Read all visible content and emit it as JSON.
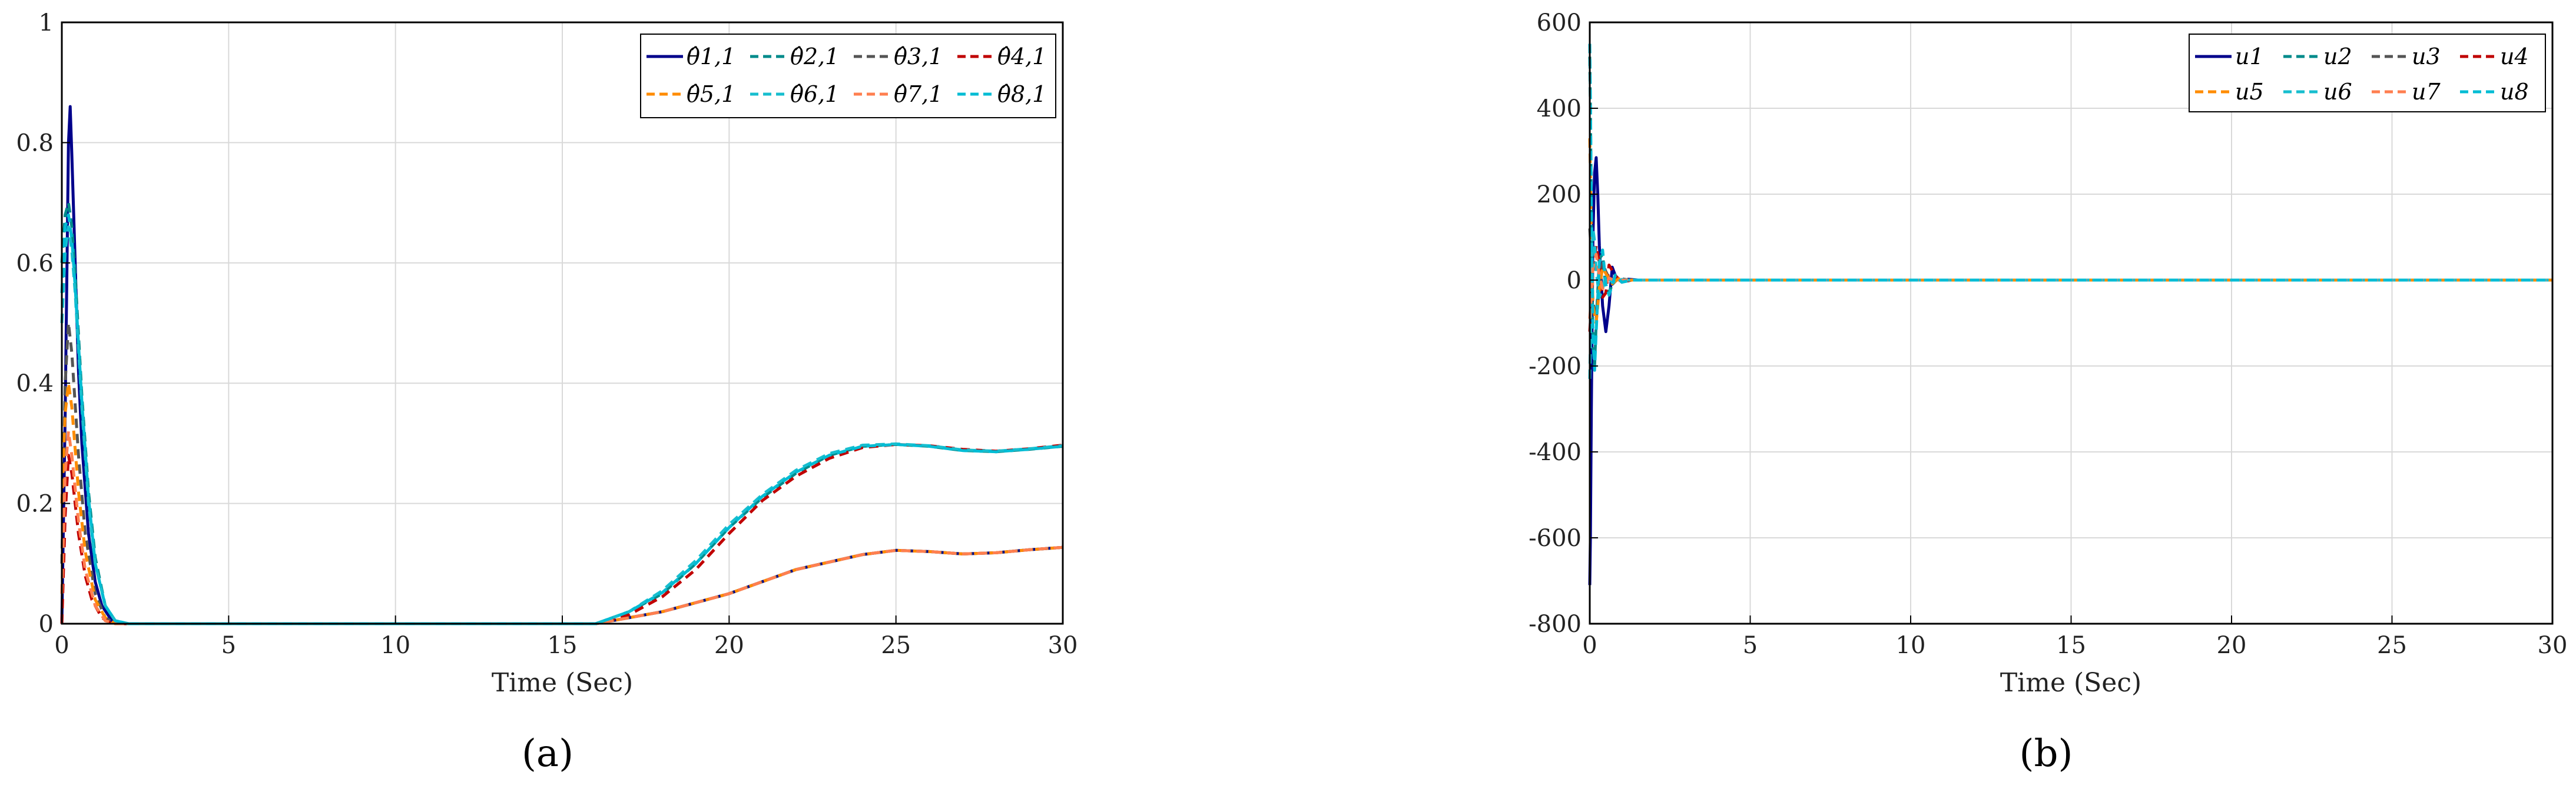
{
  "chart_data": [
    {
      "type": "line",
      "caption": "(a)",
      "xlabel": "Time (Sec)",
      "ylabel": "",
      "xlim": [
        0,
        30
      ],
      "ylim": [
        0,
        1
      ],
      "xticks": [
        "0",
        "5",
        "10",
        "15",
        "20",
        "25",
        "30"
      ],
      "yticks": [
        "0",
        "0.2",
        "0.4",
        "0.6",
        "0.8",
        "1"
      ],
      "grid": true,
      "legend_position": "top-right",
      "series": [
        {
          "name": "θ̂1,1",
          "color": "#00008b",
          "dash": "solid",
          "x": [
            0,
            0.1,
            0.2,
            0.25,
            0.3,
            0.4,
            0.5,
            0.6,
            0.8,
            1.0,
            1.2,
            1.5,
            1.8,
            2.2,
            16,
            18,
            20,
            22,
            24,
            25,
            26,
            27,
            28,
            29,
            30
          ],
          "y": [
            0,
            0.35,
            0.8,
            0.86,
            0.78,
            0.6,
            0.42,
            0.3,
            0.15,
            0.07,
            0.03,
            0.005,
            0,
            0,
            0,
            0.02,
            0.05,
            0.09,
            0.115,
            0.122,
            0.12,
            0.116,
            0.118,
            0.123,
            0.127
          ]
        },
        {
          "name": "θ̂2,1",
          "color": "#008b8b",
          "dash": "dashed",
          "x": [
            0,
            0.1,
            0.2,
            0.3,
            0.4,
            0.6,
            0.8,
            1.0,
            1.3,
            1.6,
            2.0,
            16,
            17,
            18,
            19,
            20,
            21,
            22,
            23,
            24,
            25,
            26,
            27,
            28,
            29,
            30
          ],
          "y": [
            0.6,
            0.68,
            0.7,
            0.66,
            0.58,
            0.38,
            0.22,
            0.11,
            0.03,
            0.005,
            0,
            0,
            0.02,
            0.05,
            0.1,
            0.16,
            0.21,
            0.25,
            0.28,
            0.295,
            0.298,
            0.295,
            0.288,
            0.286,
            0.29,
            0.295
          ]
        },
        {
          "name": "θ̂3,1",
          "color": "#555555",
          "dash": "dashed",
          "x": [
            0,
            0.1,
            0.2,
            0.3,
            0.5,
            0.7,
            1.0,
            1.3,
            1.6,
            2.0,
            16,
            18,
            20,
            22,
            24,
            25,
            26,
            27,
            28,
            29,
            30
          ],
          "y": [
            0.1,
            0.4,
            0.5,
            0.45,
            0.28,
            0.15,
            0.05,
            0.01,
            0,
            0,
            0,
            0.02,
            0.05,
            0.09,
            0.115,
            0.122,
            0.12,
            0.116,
            0.118,
            0.123,
            0.127
          ]
        },
        {
          "name": "θ̂4,1",
          "color": "#c00000",
          "dash": "dashed",
          "x": [
            0,
            0.1,
            0.2,
            0.3,
            0.5,
            0.7,
            0.9,
            1.2,
            1.5,
            2.0,
            16,
            17,
            18,
            19,
            20,
            21,
            22,
            23,
            24,
            25,
            26,
            27,
            28,
            29,
            30
          ],
          "y": [
            0,
            0.18,
            0.28,
            0.25,
            0.15,
            0.08,
            0.04,
            0.01,
            0,
            0,
            0,
            0.015,
            0.045,
            0.09,
            0.15,
            0.205,
            0.245,
            0.275,
            0.293,
            0.298,
            0.296,
            0.29,
            0.287,
            0.291,
            0.297
          ]
        },
        {
          "name": "θ̂5,1",
          "color": "#ff8c00",
          "dash": "dashed",
          "x": [
            0,
            0.1,
            0.2,
            0.3,
            0.5,
            0.7,
            1.0,
            1.3,
            1.6,
            2.0,
            16,
            18,
            20,
            22,
            24,
            25,
            26,
            27,
            28,
            29,
            30
          ],
          "y": [
            0.2,
            0.35,
            0.4,
            0.36,
            0.22,
            0.12,
            0.04,
            0.01,
            0,
            0,
            0,
            0.02,
            0.05,
            0.09,
            0.115,
            0.122,
            0.12,
            0.116,
            0.118,
            0.123,
            0.127
          ]
        },
        {
          "name": "θ̂6,1",
          "color": "#17becf",
          "dash": "dashed",
          "x": [
            0,
            0.1,
            0.2,
            0.3,
            0.4,
            0.6,
            0.8,
            1.0,
            1.3,
            1.6,
            2.0,
            16,
            17,
            18,
            19,
            20,
            21,
            22,
            23,
            24,
            25,
            26,
            27,
            28,
            29,
            30
          ],
          "y": [
            0.5,
            0.62,
            0.66,
            0.62,
            0.55,
            0.36,
            0.2,
            0.1,
            0.03,
            0.005,
            0,
            0,
            0.02,
            0.055,
            0.105,
            0.165,
            0.215,
            0.255,
            0.283,
            0.297,
            0.299,
            0.296,
            0.289,
            0.287,
            0.291,
            0.296
          ]
        },
        {
          "name": "θ̂7,1",
          "color": "#ff7f50",
          "dash": "dashed",
          "x": [
            0,
            0.1,
            0.2,
            0.3,
            0.5,
            0.7,
            1.0,
            1.3,
            1.6,
            2.0,
            16,
            18,
            20,
            22,
            24,
            25,
            26,
            27,
            28,
            29,
            30
          ],
          "y": [
            0.05,
            0.25,
            0.32,
            0.28,
            0.17,
            0.09,
            0.03,
            0.005,
            0,
            0,
            0,
            0.02,
            0.05,
            0.09,
            0.115,
            0.122,
            0.12,
            0.116,
            0.118,
            0.123,
            0.127
          ]
        },
        {
          "name": "θ̂8,1",
          "color": "#00bcd4",
          "dash": "dashed",
          "x": [
            0,
            0.1,
            0.2,
            0.3,
            0.4,
            0.6,
            0.8,
            1.0,
            1.3,
            1.6,
            2.0,
            16,
            17,
            18,
            19,
            20,
            21,
            22,
            23,
            24,
            25,
            26,
            27,
            28,
            29,
            30
          ],
          "y": [
            0.55,
            0.66,
            0.68,
            0.64,
            0.56,
            0.37,
            0.21,
            0.1,
            0.03,
            0.005,
            0,
            0,
            0.02,
            0.052,
            0.1,
            0.16,
            0.212,
            0.252,
            0.28,
            0.295,
            0.298,
            0.295,
            0.288,
            0.286,
            0.29,
            0.295
          ]
        }
      ]
    },
    {
      "type": "line",
      "caption": "(b)",
      "xlabel": "Time (Sec)",
      "ylabel": "",
      "xlim": [
        0,
        30
      ],
      "ylim": [
        -800,
        600
      ],
      "xticks": [
        "0",
        "5",
        "10",
        "15",
        "20",
        "25",
        "30"
      ],
      "yticks": [
        "-800",
        "-600",
        "-400",
        "-200",
        "0",
        "200",
        "400",
        "600"
      ],
      "grid": true,
      "legend_position": "top-right",
      "series": [
        {
          "name": "u1",
          "color": "#00008b",
          "dash": "solid",
          "x": [
            0,
            0.02,
            0.05,
            0.1,
            0.15,
            0.2,
            0.25,
            0.3,
            0.4,
            0.5,
            0.6,
            0.7,
            0.8,
            1.0,
            1.2,
            1.5,
            30
          ],
          "y": [
            -710,
            -600,
            -300,
            100,
            250,
            285,
            200,
            80,
            -60,
            -120,
            -60,
            30,
            10,
            -5,
            2,
            0,
            0
          ]
        },
        {
          "name": "u2",
          "color": "#008b8b",
          "dash": "dashed",
          "x": [
            0,
            0.02,
            0.05,
            0.1,
            0.15,
            0.2,
            0.3,
            0.4,
            0.5,
            0.6,
            0.8,
            1.0,
            1.3,
            30
          ],
          "y": [
            520,
            400,
            150,
            -150,
            -200,
            -100,
            50,
            60,
            -20,
            -30,
            10,
            -5,
            0,
            0
          ]
        },
        {
          "name": "u3",
          "color": "#555555",
          "dash": "dashed",
          "x": [
            0,
            0.05,
            0.1,
            0.2,
            0.3,
            0.4,
            0.5,
            0.7,
            0.9,
            1.2,
            30
          ],
          "y": [
            120,
            60,
            -50,
            -90,
            -20,
            40,
            20,
            -10,
            5,
            0,
            0
          ]
        },
        {
          "name": "u4",
          "color": "#c00000",
          "dash": "dashed",
          "x": [
            0,
            0.05,
            0.1,
            0.2,
            0.3,
            0.4,
            0.5,
            0.6,
            0.8,
            1.0,
            1.3,
            30
          ],
          "y": [
            -120,
            -60,
            20,
            80,
            40,
            -40,
            -30,
            35,
            10,
            -5,
            0,
            0
          ]
        },
        {
          "name": "u5",
          "color": "#ff8c00",
          "dash": "dashed",
          "x": [
            0,
            0.02,
            0.05,
            0.1,
            0.2,
            0.3,
            0.4,
            0.5,
            0.7,
            0.9,
            1.2,
            30
          ],
          "y": [
            330,
            250,
            100,
            -60,
            -100,
            -20,
            30,
            15,
            -8,
            3,
            0,
            0
          ]
        },
        {
          "name": "u6",
          "color": "#17becf",
          "dash": "dashed",
          "x": [
            0,
            0.02,
            0.05,
            0.1,
            0.15,
            0.2,
            0.3,
            0.4,
            0.5,
            0.7,
            0.9,
            1.2,
            30
          ],
          "y": [
            -230,
            -150,
            0,
            120,
            90,
            20,
            -40,
            -20,
            10,
            -5,
            2,
            0,
            0
          ]
        },
        {
          "name": "u7",
          "color": "#ff7f50",
          "dash": "dashed",
          "x": [
            0,
            0.05,
            0.1,
            0.2,
            0.3,
            0.4,
            0.6,
            0.8,
            1.1,
            30
          ],
          "y": [
            -90,
            -40,
            30,
            60,
            10,
            -20,
            5,
            -2,
            0,
            0
          ]
        },
        {
          "name": "u8",
          "color": "#00bcd4",
          "dash": "dashed",
          "x": [
            0,
            0.02,
            0.05,
            0.1,
            0.15,
            0.2,
            0.3,
            0.4,
            0.5,
            0.6,
            0.8,
            1.0,
            1.3,
            30
          ],
          "y": [
            550,
            420,
            180,
            -120,
            -210,
            -120,
            40,
            70,
            -10,
            -35,
            12,
            -5,
            0,
            0
          ]
        }
      ]
    }
  ]
}
